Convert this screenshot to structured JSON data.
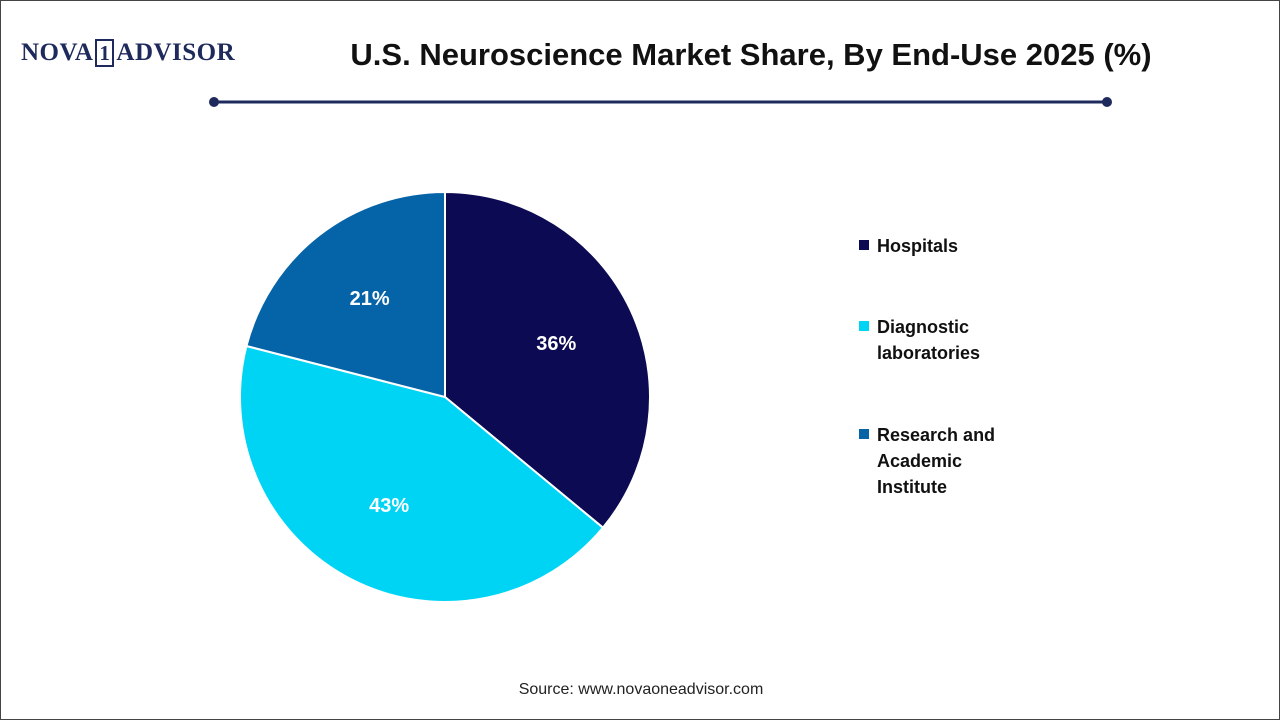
{
  "logo": {
    "parts": [
      "NOVA",
      "1",
      "ADVISOR"
    ]
  },
  "chart_data": {
    "type": "pie",
    "title": "U.S. Neuroscience Market Share, By End-Use 2025 (%)",
    "categories": [
      "Hospitals",
      "Diagnostic laboratories",
      "Research and Academic Institute"
    ],
    "values": [
      36,
      43,
      21
    ],
    "value_labels": [
      "36%",
      "43%",
      "21%"
    ],
    "colors": [
      "#0b0a52",
      "#00d4f5",
      "#0563a8"
    ],
    "legend": "right"
  },
  "source": "Source: www.novaoneadvisor.com"
}
